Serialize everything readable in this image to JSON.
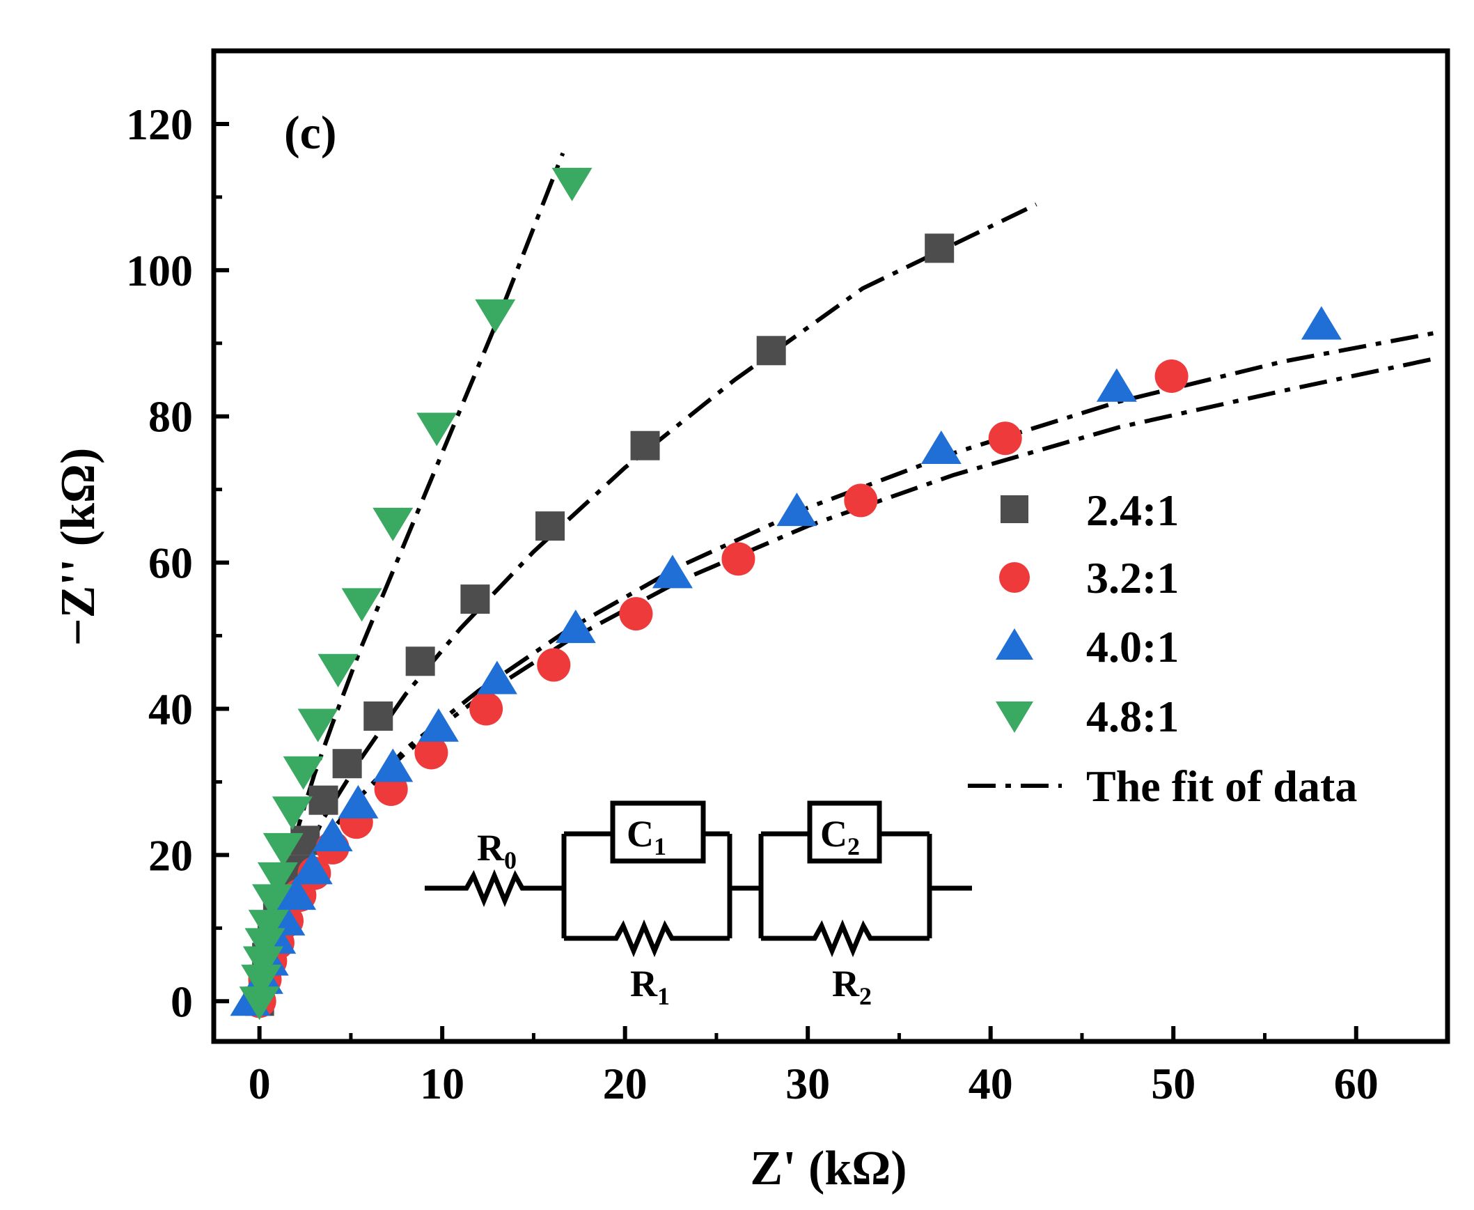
{
  "chart_data": {
    "type": "scatter",
    "panel_label": "(c)",
    "xlabel": "Z' (kΩ)",
    "ylabel": "−Z'' (kΩ)",
    "xlim": [
      -2.5,
      65
    ],
    "ylim": [
      -5.5,
      130
    ],
    "xticks": [
      0,
      10,
      20,
      30,
      40,
      50,
      60
    ],
    "yticks": [
      0,
      20,
      40,
      60,
      80,
      100,
      120
    ],
    "xtick_labels": [
      "0",
      "10",
      "20",
      "30",
      "40",
      "50",
      "60"
    ],
    "ytick_labels": [
      "0",
      "20",
      "40",
      "60",
      "80",
      "100",
      "120"
    ],
    "grid": false,
    "legend_position": "center-right",
    "fit_label": "The fit of data",
    "series": [
      {
        "name": "2.4:1",
        "marker": "square",
        "color": "#4d4d4d",
        "x": [
          0,
          0.2,
          0.4,
          0.7,
          1.0,
          1.5,
          2.0,
          2.5,
          3.5,
          4.8,
          6.5,
          8.8,
          11.8,
          15.9,
          21.1,
          28.0,
          37.2
        ],
        "y": [
          0,
          3,
          6,
          9,
          12,
          15,
          18,
          22,
          27.5,
          32.5,
          39,
          46.5,
          55,
          65,
          76,
          89,
          103
        ]
      },
      {
        "name": "3.2:1",
        "marker": "circle",
        "color": "#ee3a3a",
        "x": [
          0,
          0.3,
          0.6,
          1.0,
          1.5,
          2.2,
          3.0,
          4.0,
          5.3,
          7.2,
          9.4,
          12.4,
          16.1,
          20.6,
          26.2,
          32.9,
          40.8,
          49.9
        ],
        "y": [
          0,
          3,
          5.5,
          8,
          11,
          14.5,
          17.5,
          21,
          24.5,
          29,
          34,
          40,
          46,
          53,
          60.5,
          68.5,
          77,
          85.5
        ]
      },
      {
        "name": "4.0:1",
        "marker": "triangle-up",
        "color": "#1f6fd6",
        "x": [
          -0.5,
          0.2,
          0.5,
          0.9,
          1.4,
          2.0,
          2.9,
          4.0,
          5.4,
          7.3,
          9.8,
          13.0,
          17.3,
          22.6,
          29.4,
          37.3,
          46.9,
          58.1
        ],
        "y": [
          0,
          3,
          5.5,
          8.5,
          11,
          14.5,
          18,
          22.5,
          27,
          32,
          37.5,
          44,
          51,
          58.5,
          67,
          75.5,
          84,
          92.5
        ]
      },
      {
        "name": "4.8:1",
        "marker": "triangle-down",
        "color": "#3aaa63",
        "x": [
          0,
          0.1,
          0.2,
          0.3,
          0.5,
          0.7,
          1.0,
          1.3,
          1.8,
          2.4,
          3.2,
          4.3,
          5.6,
          7.3,
          9.7,
          12.9,
          17.1
        ],
        "y": [
          0,
          3,
          5.5,
          8,
          10.5,
          14,
          17,
          21,
          26,
          31.5,
          38,
          45.5,
          54.5,
          65.5,
          78.5,
          94,
          112
        ]
      }
    ],
    "fits": [
      {
        "name": "fit 2.4:1",
        "x": [
          0,
          0.5,
          1.0,
          2.0,
          3.5,
          5.5,
          8.0,
          11.0,
          15.0,
          20.0,
          26.0,
          33.0,
          42.5
        ],
        "y": [
          0,
          5.5,
          10,
          17,
          25,
          33,
          42,
          51,
          61.5,
          73,
          85,
          97.5,
          109
        ]
      },
      {
        "name": "fit 3.2:1",
        "x": [
          0,
          0.5,
          1.0,
          2.0,
          3.5,
          5.5,
          8.0,
          12.0,
          17.0,
          23.0,
          30.0,
          38.0,
          47.0,
          56.0,
          64.5
        ],
        "y": [
          0,
          6,
          10,
          16,
          22,
          28,
          34,
          41.5,
          49.5,
          57.5,
          65,
          72,
          78.5,
          83.5,
          88
        ]
      },
      {
        "name": "fit 4.0:1",
        "x": [
          0,
          0.5,
          1.0,
          2.0,
          3.5,
          5.5,
          8.0,
          12.0,
          17.0,
          23.0,
          30.0,
          38.0,
          47.0,
          56.0,
          64.5
        ],
        "y": [
          0,
          6,
          10,
          16,
          22,
          28,
          34.5,
          42.5,
          51,
          59.5,
          67.5,
          75,
          82,
          87.5,
          91.5
        ]
      },
      {
        "name": "fit 4.8:1",
        "x": [
          0,
          0.3,
          0.6,
          1.0,
          1.5,
          2.2,
          3.0,
          4.0,
          5.5,
          7.5,
          10.0,
          13.0,
          16.6
        ],
        "y": [
          0,
          5,
          9,
          13.5,
          18.5,
          24.5,
          31,
          38,
          48,
          60,
          75,
          93,
          116
        ]
      }
    ]
  },
  "circuit": {
    "r0": {
      "main": "R",
      "sub": "0"
    },
    "c1": {
      "main": "C",
      "sub": "1"
    },
    "r1": {
      "main": "R",
      "sub": "1"
    },
    "c2": {
      "main": "C",
      "sub": "2"
    },
    "r2": {
      "main": "R",
      "sub": "2"
    }
  }
}
